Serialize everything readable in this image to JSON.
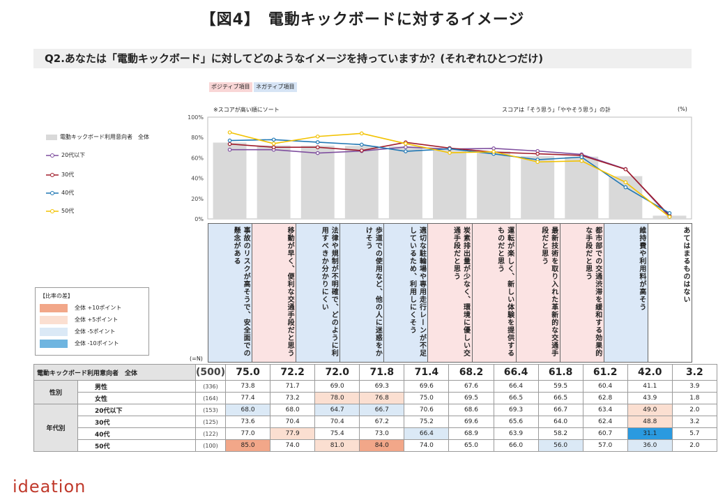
{
  "title": "【図4】　電動キックボードに対するイメージ",
  "question": "Q2.あなたは「電動キックボード」に対してどのようなイメージを持っていますか？(それぞれひとつだけ)",
  "chips": {
    "positive": "ポジティブ項目",
    "negative": "ネガティブ項目"
  },
  "notes": {
    "sort": "※スコアが高い順にソート",
    "score": "スコアは「そう思う」「ややそう思う」の計",
    "unit": "(%)"
  },
  "legend": {
    "bar": "電動キックボード利用意向者　全体",
    "lines": [
      "20代以下",
      "30代",
      "40代",
      "50代"
    ]
  },
  "ratio_legend": {
    "title": "【比率の差】",
    "items": [
      "全体 +10ポイント",
      "全体 +5ポイント",
      "全体 -5ポイント",
      "全体 -10ポイント"
    ]
  },
  "n_label": "(=N)",
  "logo": "ideation",
  "colors": {
    "bar": "#d9d9d9",
    "u20": "#7f4f9f",
    "s30": "#a01b2a",
    "s40": "#1f77b4",
    "s50": "#f2c200",
    "pos": "#fbe3e3",
    "neg": "#dbe8f7",
    "plus10": "#f2a789",
    "plus5": "#fbdfd1",
    "minus5": "#dbe9f6",
    "minus10": "#6fb5e0",
    "deep": "#2a9ae0"
  },
  "chart_data": {
    "type": "bar",
    "ylim": [
      0,
      100
    ],
    "yticks": [
      "100%",
      "80%",
      "60%",
      "40%",
      "20%",
      "0%"
    ],
    "categories": [
      "事故のリスクが高そうで、安全面での懸念がある",
      "移動が早く、便利な交通手段だと思う",
      "法律や規制が不明確で、どのように利用すべきか分かりにくい",
      "歩道での使用など、他の人に迷惑をかけそう",
      "適切な駐輪場や専用走行レーンが不足しているため、利用しにくそう",
      "炭素排出量が少なく、環境に優しい交通手段だと思う",
      "運転が楽しく、新しい体験を提供するものだと思う",
      "最新技術を取り入れた革新的な交通手段だと思う",
      "都市部での交通渋滞を緩和する効果的な手段だと思う",
      "維持費や利用料が高そう",
      "あてはまるものはない"
    ],
    "category_type": [
      "neg",
      "pos",
      "neg",
      "neg",
      "neg",
      "pos",
      "pos",
      "pos",
      "pos",
      "neg",
      "none"
    ],
    "series": [
      {
        "name": "電動キックボード利用意向者　全体",
        "n": "(500)",
        "values": [
          75.0,
          72.2,
          72.0,
          71.8,
          71.4,
          68.2,
          66.4,
          61.8,
          61.2,
          42.0,
          3.2
        ]
      },
      {
        "name": "20代以下",
        "n": "(153)",
        "values": [
          68.0,
          68.0,
          64.7,
          66.7,
          70.6,
          68.6,
          69.3,
          66.7,
          63.4,
          49.0,
          2.0
        ]
      },
      {
        "name": "30代",
        "n": "(125)",
        "values": [
          73.6,
          70.4,
          70.4,
          67.2,
          75.2,
          69.6,
          65.6,
          64.0,
          62.4,
          48.8,
          3.2
        ]
      },
      {
        "name": "40代",
        "n": "(122)",
        "values": [
          77.0,
          77.9,
          75.4,
          73.0,
          66.4,
          68.9,
          63.9,
          58.2,
          60.7,
          31.1,
          5.7
        ]
      },
      {
        "name": "50代",
        "n": "(100)",
        "values": [
          85.0,
          74.0,
          81.0,
          84.0,
          74.0,
          65.0,
          66.0,
          56.0,
          57.0,
          36.0,
          2.0
        ]
      }
    ]
  },
  "table": {
    "total_label": "電動キックボード利用意向者　全体",
    "total_n": "(500)",
    "total_values": [
      "75.0",
      "72.2",
      "72.0",
      "71.8",
      "71.4",
      "68.2",
      "66.4",
      "61.8",
      "61.2",
      "42.0",
      "3.2"
    ],
    "groups": [
      {
        "label": "性別",
        "rows": [
          {
            "label": "男性",
            "n": "(336)",
            "values": [
              "73.8",
              "71.7",
              "69.0",
              "69.3",
              "69.6",
              "67.6",
              "66.4",
              "59.5",
              "60.4",
              "41.1",
              "3.9"
            ],
            "shade": [
              "",
              "",
              "",
              "",
              "",
              "",
              "",
              "",
              "",
              "",
              ""
            ]
          },
          {
            "label": "女性",
            "n": "(164)",
            "values": [
              "77.4",
              "73.2",
              "78.0",
              "76.8",
              "75.0",
              "69.5",
              "66.5",
              "66.5",
              "62.8",
              "43.9",
              "1.8"
            ],
            "shade": [
              "",
              "",
              "plus5",
              "plus5",
              "",
              "",
              "",
              "",
              "",
              "",
              ""
            ]
          }
        ]
      },
      {
        "label": "年代別",
        "rows": [
          {
            "label": "20代以下",
            "n": "(153)",
            "values": [
              "68.0",
              "68.0",
              "64.7",
              "66.7",
              "70.6",
              "68.6",
              "69.3",
              "66.7",
              "63.4",
              "49.0",
              "2.0"
            ],
            "shade": [
              "minus5",
              "",
              "minus5",
              "minus5",
              "",
              "",
              "",
              "",
              "",
              "plus5",
              ""
            ]
          },
          {
            "label": "30代",
            "n": "(125)",
            "values": [
              "73.6",
              "70.4",
              "70.4",
              "67.2",
              "75.2",
              "69.6",
              "65.6",
              "64.0",
              "62.4",
              "48.8",
              "3.2"
            ],
            "shade": [
              "",
              "",
              "",
              "",
              "",
              "",
              "",
              "",
              "",
              "plus5",
              ""
            ]
          },
          {
            "label": "40代",
            "n": "(122)",
            "values": [
              "77.0",
              "77.9",
              "75.4",
              "73.0",
              "66.4",
              "68.9",
              "63.9",
              "58.2",
              "60.7",
              "31.1",
              "5.7"
            ],
            "shade": [
              "",
              "plus5",
              "",
              "",
              "minus5",
              "",
              "",
              "",
              "",
              "deep",
              ""
            ]
          },
          {
            "label": "50代",
            "n": "(100)",
            "values": [
              "85.0",
              "74.0",
              "81.0",
              "84.0",
              "74.0",
              "65.0",
              "66.0",
              "56.0",
              "57.0",
              "36.0",
              "2.0"
            ],
            "shade": [
              "plus10",
              "",
              "plus5",
              "plus10",
              "",
              "",
              "",
              "minus5",
              "",
              "minus5",
              ""
            ]
          }
        ]
      }
    ]
  }
}
